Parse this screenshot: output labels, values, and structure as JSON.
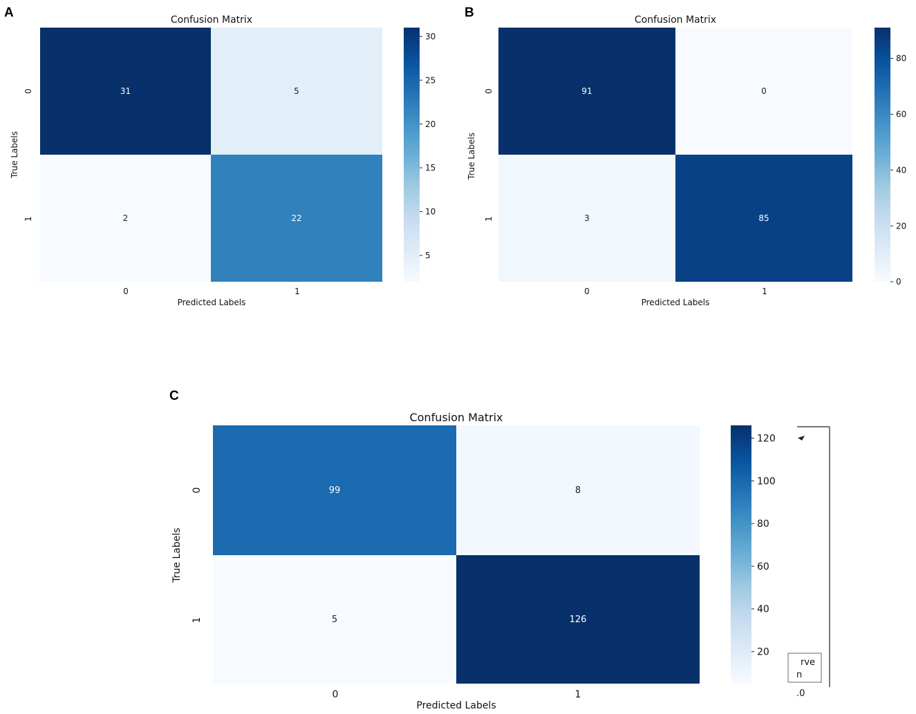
{
  "panels": [
    "A",
    "B",
    "C"
  ],
  "chart_data": [
    {
      "panel": "A",
      "type": "heatmap",
      "title": "Confusion Matrix",
      "xlabel": "Predicted Labels",
      "ylabel": "True Labels",
      "x_ticks": [
        "0",
        "1"
      ],
      "y_ticks": [
        "0",
        "1"
      ],
      "matrix": [
        [
          31,
          5
        ],
        [
          2,
          22
        ]
      ],
      "colorbar": {
        "min": 2,
        "max": 31,
        "ticks": [
          5,
          10,
          15,
          20,
          25,
          30
        ]
      },
      "colormap": "Blues"
    },
    {
      "panel": "B",
      "type": "heatmap",
      "title": "Confusion Matrix",
      "xlabel": "Predicted Labels",
      "ylabel": "True Labels",
      "x_ticks": [
        "0",
        "1"
      ],
      "y_ticks": [
        "0",
        "1"
      ],
      "matrix": [
        [
          91,
          0
        ],
        [
          3,
          85
        ]
      ],
      "colorbar": {
        "min": 0,
        "max": 91,
        "ticks": [
          0,
          20,
          40,
          60,
          80
        ]
      },
      "colormap": "Blues"
    },
    {
      "panel": "C",
      "type": "heatmap",
      "title": "Confusion Matrix",
      "xlabel": "Predicted Labels",
      "ylabel": "True Labels",
      "x_ticks": [
        "0",
        "1"
      ],
      "y_ticks": [
        "0",
        "1"
      ],
      "matrix": [
        [
          99,
          8
        ],
        [
          5,
          126
        ]
      ],
      "colorbar": {
        "min": 5,
        "max": 126,
        "ticks": [
          20,
          40,
          60,
          80,
          100,
          120
        ]
      },
      "colormap": "Blues"
    }
  ],
  "overlap_fragments": {
    "legend_line1": "rve",
    "legend_line2": "n",
    "tick": ".0"
  }
}
